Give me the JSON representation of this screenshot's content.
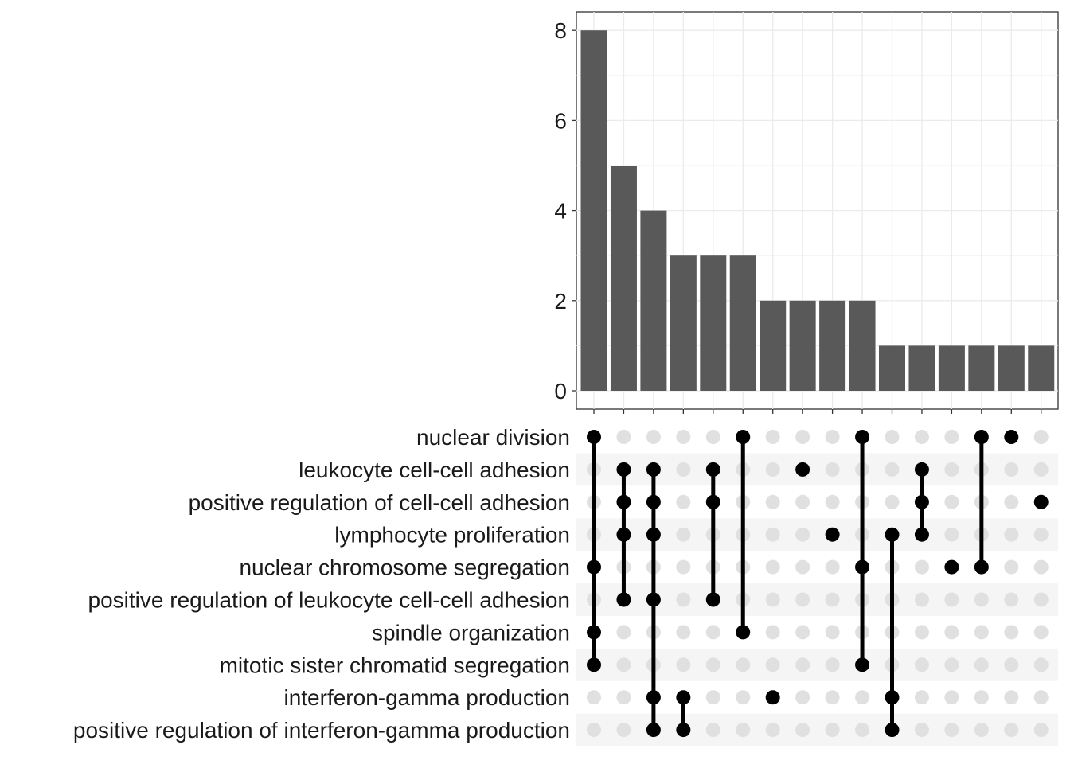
{
  "chart_data": {
    "type": "upset",
    "bar_chart": {
      "type": "bar",
      "ylim": [
        0,
        8.4
      ],
      "y_ticks": [
        "0",
        "2",
        "4",
        "6",
        "8"
      ],
      "values": [
        8,
        5,
        4,
        3,
        3,
        3,
        2,
        2,
        2,
        2,
        1,
        1,
        1,
        1,
        1,
        1
      ],
      "bar_color": "#595959",
      "grid": true
    },
    "sets": [
      "nuclear division",
      "leukocyte cell-cell adhesion",
      "positive regulation of cell-cell adhesion",
      "lymphocyte proliferation",
      "nuclear chromosome segregation",
      "positive regulation of leukocyte cell-cell adhesion",
      "spindle organization",
      "mitotic sister chromatid segregation",
      "interferon-gamma production",
      "positive regulation of interferon-gamma production"
    ],
    "intersections": [
      [
        0,
        4,
        6,
        7
      ],
      [
        1,
        2,
        3,
        5
      ],
      [
        1,
        2,
        3,
        5,
        8,
        9
      ],
      [
        8,
        9
      ],
      [
        1,
        2,
        5
      ],
      [
        0,
        6
      ],
      [
        8
      ],
      [
        1
      ],
      [
        3
      ],
      [
        0,
        4,
        7
      ],
      [
        3,
        8,
        9
      ],
      [
        1,
        2,
        3
      ],
      [
        4
      ],
      [
        0,
        4
      ],
      [
        0
      ],
      [
        2
      ]
    ],
    "colors": {
      "active_dot": "#000000",
      "inactive_dot": "#e0e0e0",
      "stripe": "#f5f5f5",
      "grid": "#ebebeb"
    }
  }
}
